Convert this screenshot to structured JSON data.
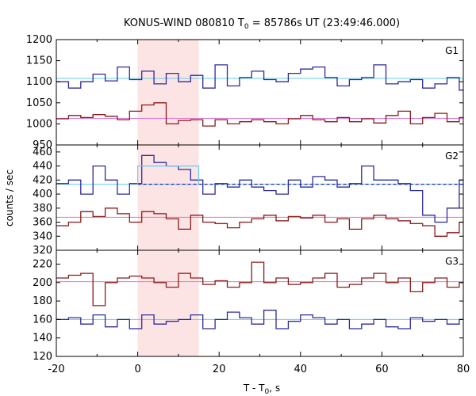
{
  "chart_data": {
    "type": "line",
    "title_main": "KONUS-WIND 080810 T",
    "title_sub": "0",
    "title_rest": " = 85786s UT (23:49:46.000)",
    "xlabel_main": "T - T",
    "xlabel_sub": "0",
    "xlabel_rest": ", s",
    "ylabel": "counts / sec",
    "xlim": [
      -20,
      80
    ],
    "xticks": [
      "-20",
      "0",
      "20",
      "40",
      "60",
      "80"
    ],
    "x_edges": [
      -20,
      -17,
      -14,
      -11,
      -8,
      -5,
      -2,
      1,
      4,
      7,
      10,
      13,
      16,
      19,
      22,
      25,
      28,
      31,
      34,
      37,
      40,
      43,
      46,
      49,
      52,
      55,
      58,
      61,
      64,
      67,
      70,
      73,
      76,
      79,
      80
    ],
    "shade": {
      "x_start": 0,
      "x_end": 15,
      "color": "#fde4e4"
    },
    "panels": [
      {
        "name": "G1",
        "ylim": [
          950,
          1200
        ],
        "yticks": [
          "950",
          "1000",
          "1050",
          "1100",
          "1150",
          "1200"
        ],
        "yvals": [
          950,
          1000,
          1050,
          1100,
          1150,
          1200
        ],
        "series": [
          {
            "color": "#2b2b9a",
            "values": [
              1100,
              1085,
              1100,
              1118,
              1102,
              1135,
              1105,
              1125,
              1095,
              1120,
              1100,
              1115,
              1085,
              1140,
              1090,
              1110,
              1125,
              1105,
              1100,
              1120,
              1130,
              1135,
              1110,
              1090,
              1105,
              1110,
              1140,
              1095,
              1100,
              1105,
              1085,
              1095,
              1110,
              1080
            ]
          },
          {
            "color": "#8b1a1a",
            "values": [
              1012,
              1020,
              1015,
              1022,
              1018,
              1010,
              1030,
              1045,
              1050,
              1000,
              1008,
              1010,
              995,
              1010,
              1000,
              1005,
              1010,
              1005,
              1000,
              1012,
              1020,
              1010,
              1005,
              1015,
              1005,
              1012,
              1002,
              1020,
              1030,
              1000,
              1015,
              1025,
              1005,
              1015
            ]
          }
        ],
        "baselines": [
          {
            "color": "#66ccee",
            "value": 1108,
            "dash": false
          },
          {
            "color": "#e07ad0",
            "value": 1013,
            "dash": false
          }
        ],
        "steps": []
      },
      {
        "name": "G2",
        "ylim": [
          320,
          470
        ],
        "yticks": [
          "320",
          "340",
          "360",
          "380",
          "400",
          "420",
          "440",
          "460"
        ],
        "yvals": [
          320,
          340,
          360,
          380,
          400,
          420,
          440,
          460
        ],
        "series": [
          {
            "color": "#2b2b9a",
            "values": [
              415,
              420,
              400,
              440,
              420,
              400,
              415,
              455,
              445,
              440,
              435,
              420,
              400,
              415,
              410,
              420,
              410,
              405,
              400,
              420,
              410,
              425,
              420,
              410,
              415,
              440,
              420,
              420,
              415,
              405,
              370,
              360,
              380,
              420
            ]
          },
          {
            "color": "#8b1a1a",
            "values": [
              355,
              360,
              375,
              368,
              380,
              372,
              360,
              375,
              372,
              365,
              350,
              370,
              360,
              358,
              352,
              360,
              365,
              370,
              362,
              368,
              366,
              370,
              360,
              365,
              350,
              365,
              370,
              365,
              362,
              358,
              355,
              340,
              345,
              360
            ]
          }
        ],
        "baselines": [
          {
            "color": "#66ccee",
            "value": 414,
            "dash": false
          },
          {
            "color": "#e07ad0",
            "value": 367,
            "dash": false
          },
          {
            "color": "#2020b0",
            "value": 414,
            "dash": true,
            "x_start": 0,
            "x_end": 80
          }
        ],
        "steps": [
          {
            "color": "#66ccee",
            "points": [
              [
                0,
                414
              ],
              [
                0,
                440
              ],
              [
                15,
                440
              ],
              [
                15,
                414
              ]
            ]
          }
        ]
      },
      {
        "name": "G3",
        "ylim": [
          120,
          235
        ],
        "yticks": [
          "120",
          "140",
          "160",
          "180",
          "200",
          "220"
        ],
        "yvals": [
          120,
          140,
          160,
          180,
          200,
          220
        ],
        "series": [
          {
            "color": "#2b2b9a",
            "values": [
              160,
              162,
              155,
              165,
              152,
              160,
              150,
              165,
              155,
              158,
              160,
              165,
              150,
              160,
              168,
              162,
              155,
              170,
              150,
              158,
              165,
              162,
              155,
              160,
              150,
              155,
              160,
              152,
              150,
              162,
              158,
              160,
              155,
              160
            ]
          },
          {
            "color": "#8b1a1a",
            "values": [
              205,
              208,
              210,
              175,
              200,
              205,
              207,
              205,
              200,
              195,
              210,
              205,
              198,
              202,
              195,
              200,
              222,
              200,
              205,
              198,
              200,
              205,
              210,
              195,
              198,
              205,
              210,
              200,
              205,
              190,
              200,
              205,
              195,
              200
            ]
          }
        ],
        "baselines": [
          {
            "color": "#66ccee",
            "value": 160,
            "dash": false
          },
          {
            "color": "#e07ad0",
            "value": 201,
            "dash": false
          }
        ],
        "steps": []
      }
    ]
  }
}
